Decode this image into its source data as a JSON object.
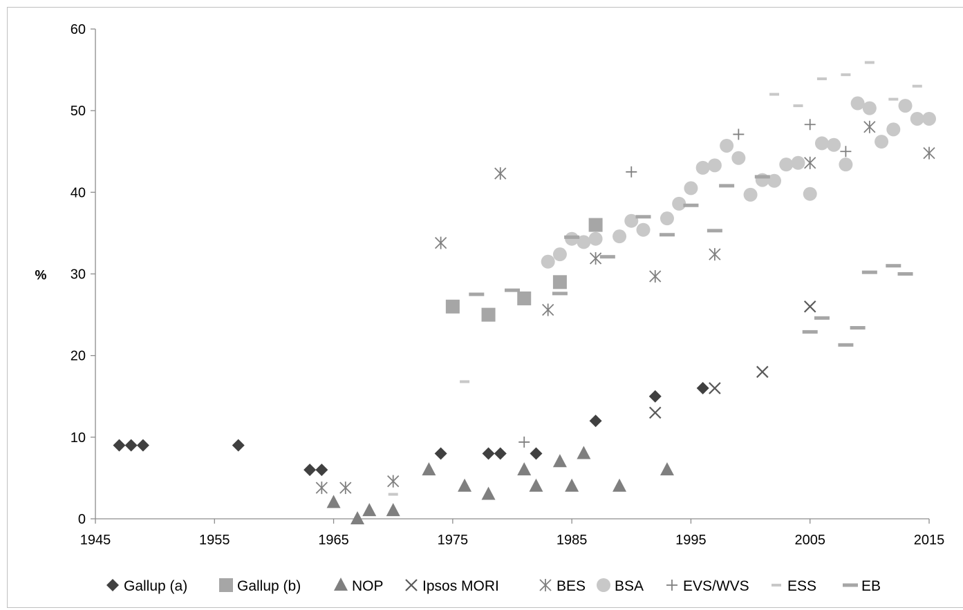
{
  "chart_data": {
    "type": "scatter",
    "title": "",
    "xlabel": "",
    "ylabel": "%",
    "xlim": [
      1945,
      2015
    ],
    "ylim": [
      0,
      60
    ],
    "x_ticks": [
      "1945",
      "1955",
      "1965",
      "1975",
      "1985",
      "1995",
      "2005",
      "2015"
    ],
    "y_ticks": [
      "0",
      "10",
      "20",
      "30",
      "40",
      "50",
      "60"
    ],
    "grid": false,
    "legend_position": "bottom",
    "series": [
      {
        "name": "Gallup (a)",
        "marker": "diamond",
        "color": "#404040",
        "points": [
          [
            1947,
            9
          ],
          [
            1948,
            9
          ],
          [
            1949,
            9
          ],
          [
            1957,
            9
          ],
          [
            1963,
            6
          ],
          [
            1964,
            6
          ],
          [
            1974,
            8
          ],
          [
            1978,
            8
          ],
          [
            1979,
            8
          ],
          [
            1982,
            8
          ],
          [
            1987,
            12
          ],
          [
            1992,
            15
          ],
          [
            1996,
            16
          ]
        ]
      },
      {
        "name": "Gallup (b)",
        "marker": "square",
        "color": "#a6a6a6",
        "points": [
          [
            1975,
            26
          ],
          [
            1978,
            25
          ],
          [
            1981,
            27
          ],
          [
            1984,
            29
          ],
          [
            1987,
            36
          ]
        ]
      },
      {
        "name": "NOP",
        "marker": "triangle",
        "color": "#7f7f7f",
        "points": [
          [
            1965,
            2
          ],
          [
            1967,
            0
          ],
          [
            1968,
            1
          ],
          [
            1970,
            1
          ],
          [
            1973,
            6
          ],
          [
            1976,
            4
          ],
          [
            1978,
            3
          ],
          [
            1981,
            6
          ],
          [
            1982,
            4
          ],
          [
            1984,
            7
          ],
          [
            1985,
            4
          ],
          [
            1986,
            8
          ],
          [
            1989,
            4
          ],
          [
            1993,
            6
          ]
        ]
      },
      {
        "name": "Ipsos MORI",
        "marker": "x",
        "color": "#595959",
        "points": [
          [
            1992,
            13
          ],
          [
            1997,
            16
          ],
          [
            2001,
            18
          ],
          [
            2005,
            26
          ]
        ]
      },
      {
        "name": "BES",
        "marker": "asterisk",
        "color": "#808080",
        "points": [
          [
            1964,
            3.8
          ],
          [
            1966,
            3.8
          ],
          [
            1970,
            4.6
          ],
          [
            1974,
            33.8
          ],
          [
            1979,
            42.3
          ],
          [
            1983,
            25.6
          ],
          [
            1987,
            31.9
          ],
          [
            1992,
            29.7
          ],
          [
            1997,
            32.4
          ],
          [
            2005,
            43.6
          ],
          [
            2010,
            48
          ],
          [
            2015,
            44.8
          ]
        ]
      },
      {
        "name": "BSA",
        "marker": "circle",
        "color": "#c8c8c8",
        "points": [
          [
            1983,
            31.5
          ],
          [
            1984,
            32.4
          ],
          [
            1985,
            34.3
          ],
          [
            1986,
            33.9
          ],
          [
            1987,
            34.3
          ],
          [
            1989,
            34.6
          ],
          [
            1990,
            36.5
          ],
          [
            1991,
            35.4
          ],
          [
            1993,
            36.8
          ],
          [
            1994,
            38.6
          ],
          [
            1995,
            40.5
          ],
          [
            1996,
            43
          ],
          [
            1997,
            43.3
          ],
          [
            1998,
            45.7
          ],
          [
            1999,
            44.2
          ],
          [
            2000,
            39.7
          ],
          [
            2001,
            41.5
          ],
          [
            2002,
            41.4
          ],
          [
            2003,
            43.4
          ],
          [
            2004,
            43.6
          ],
          [
            2005,
            39.8
          ],
          [
            2006,
            46
          ],
          [
            2007,
            45.8
          ],
          [
            2008,
            43.4
          ],
          [
            2009,
            50.9
          ],
          [
            2010,
            50.3
          ],
          [
            2011,
            46.2
          ],
          [
            2012,
            47.7
          ],
          [
            2013,
            50.6
          ],
          [
            2014,
            49
          ],
          [
            2015,
            49
          ]
        ]
      },
      {
        "name": "EVS/WVS",
        "marker": "plus",
        "color": "#808080",
        "points": [
          [
            1981,
            9.4
          ],
          [
            1990,
            42.5
          ],
          [
            1999,
            47.1
          ],
          [
            2005,
            48.3
          ],
          [
            2008,
            45
          ]
        ]
      },
      {
        "name": "ESS",
        "marker": "dash-light",
        "color": "#c8c8c8",
        "points": [
          [
            1970,
            3
          ],
          [
            1976,
            16.8
          ],
          [
            2002,
            52
          ],
          [
            2004,
            50.6
          ],
          [
            2006,
            53.9
          ],
          [
            2008,
            54.4
          ],
          [
            2010,
            55.9
          ],
          [
            2012,
            51.4
          ],
          [
            2014,
            53
          ]
        ]
      },
      {
        "name": "EB",
        "marker": "dash",
        "color": "#a6a6a6",
        "points": [
          [
            1977,
            27.5
          ],
          [
            1980,
            28
          ],
          [
            1984,
            27.6
          ],
          [
            1985,
            34.5
          ],
          [
            1988,
            32.1
          ],
          [
            1991,
            37
          ],
          [
            1993,
            34.8
          ],
          [
            1995,
            38.4
          ],
          [
            1998,
            40.8
          ],
          [
            1997,
            35.3
          ],
          [
            2001,
            41.9
          ],
          [
            2005,
            22.9
          ],
          [
            2006,
            24.6
          ],
          [
            2008,
            21.3
          ],
          [
            2009,
            23.4
          ],
          [
            2010,
            30.2
          ],
          [
            2012,
            31
          ],
          [
            2013,
            30
          ]
        ]
      }
    ]
  }
}
